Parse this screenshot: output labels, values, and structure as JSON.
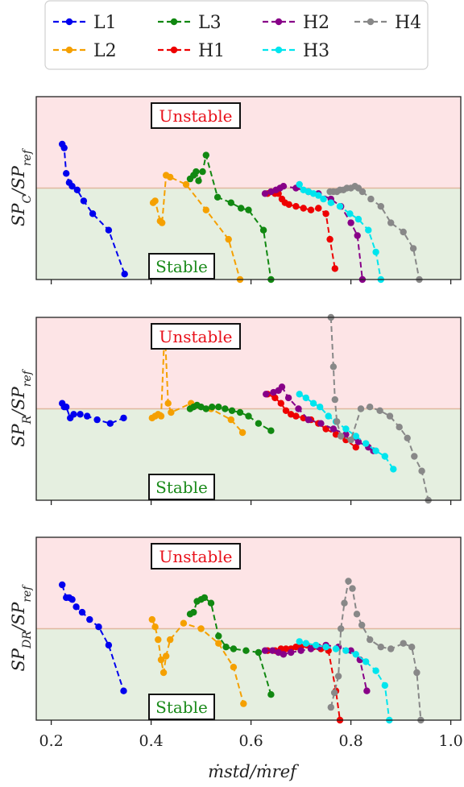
{
  "colors": {
    "unstable_bg": "#fde4e6",
    "stable_bg": "#e5efe0",
    "threshold_line": "#e0b8a0",
    "unstable_text": "#e8101a",
    "stable_text": "#1a8a1a"
  },
  "legend": {
    "entries": [
      "L1",
      "L2",
      "L3",
      "H1",
      "H2",
      "H3",
      "H4"
    ]
  },
  "x_tick_labels": [
    "0.2",
    "0.4",
    "0.6",
    "0.8",
    "1.0"
  ],
  "x_axis_label": "ṁstd/ṁref",
  "panels": [
    {
      "ylabel_main": "SP",
      "ylabel_sub": "C",
      "ylabel_ref": "SPref",
      "unstable_label": "Unstable",
      "stable_label": "Stable"
    },
    {
      "ylabel_main": "SP",
      "ylabel_sub": "R",
      "ylabel_ref": "SPref",
      "unstable_label": "Unstable",
      "stable_label": "Stable"
    },
    {
      "ylabel_main": "SP",
      "ylabel_sub": "DR",
      "ylabel_ref": "SPref",
      "unstable_label": "Unstable",
      "stable_label": "Stable"
    }
  ],
  "chart_data": [
    {
      "type": "line",
      "title": "",
      "xlabel": "ṁstd/ṁref",
      "ylabel": "SP_C/SP_ref",
      "xlim": [
        0.17,
        1.02
      ],
      "ylim": [
        0,
        1
      ],
      "threshold": 0.5,
      "series": [
        {
          "name": "L1",
          "color": "#0000ee",
          "x": [
            0.222,
            0.226,
            0.23,
            0.236,
            0.242,
            0.252,
            0.265,
            0.283,
            0.315,
            0.347
          ],
          "y": [
            0.74,
            0.72,
            0.58,
            0.53,
            0.51,
            0.49,
            0.43,
            0.36,
            0.27,
            0.03
          ]
        },
        {
          "name": "L2",
          "color": "#f5a000",
          "x": [
            0.404,
            0.408,
            0.418,
            0.422,
            0.43,
            0.438,
            0.47,
            0.51,
            0.555,
            0.578
          ],
          "y": [
            0.42,
            0.43,
            0.32,
            0.31,
            0.57,
            0.56,
            0.52,
            0.38,
            0.22,
            0.0
          ]
        },
        {
          "name": "L3",
          "color": "#118811",
          "x": [
            0.478,
            0.485,
            0.49,
            0.495,
            0.503,
            0.51,
            0.533,
            0.56,
            0.58,
            0.595,
            0.625,
            0.64
          ],
          "y": [
            0.55,
            0.57,
            0.59,
            0.54,
            0.59,
            0.68,
            0.45,
            0.42,
            0.39,
            0.38,
            0.27,
            0.0
          ]
        },
        {
          "name": "H1",
          "color": "#ee0000",
          "x": [
            0.633,
            0.648,
            0.655,
            0.662,
            0.668,
            0.676,
            0.69,
            0.705,
            0.72,
            0.735,
            0.75,
            0.758,
            0.768
          ],
          "y": [
            0.47,
            0.47,
            0.47,
            0.44,
            0.42,
            0.41,
            0.4,
            0.39,
            0.38,
            0.39,
            0.36,
            0.22,
            0.06
          ]
        },
        {
          "name": "H2",
          "color": "#880088",
          "x": [
            0.628,
            0.64,
            0.65,
            0.658,
            0.665,
            0.69,
            0.715,
            0.735,
            0.76,
            0.78,
            0.8,
            0.813,
            0.823
          ],
          "y": [
            0.47,
            0.48,
            0.49,
            0.5,
            0.51,
            0.5,
            0.48,
            0.47,
            0.44,
            0.4,
            0.31,
            0.24,
            0.0
          ]
        },
        {
          "name": "H3",
          "color": "#00e5ee",
          "x": [
            0.697,
            0.705,
            0.715,
            0.725,
            0.735,
            0.745,
            0.76,
            0.778,
            0.798,
            0.815,
            0.835,
            0.85,
            0.86
          ],
          "y": [
            0.52,
            0.49,
            0.48,
            0.47,
            0.46,
            0.44,
            0.42,
            0.4,
            0.36,
            0.33,
            0.27,
            0.15,
            0.0
          ]
        },
        {
          "name": "H4",
          "color": "#888888",
          "x": [
            0.758,
            0.765,
            0.772,
            0.778,
            0.785,
            0.792,
            0.8,
            0.808,
            0.815,
            0.823,
            0.84,
            0.86,
            0.88,
            0.905,
            0.925,
            0.937
          ],
          "y": [
            0.48,
            0.48,
            0.48,
            0.49,
            0.49,
            0.5,
            0.5,
            0.51,
            0.5,
            0.48,
            0.44,
            0.4,
            0.31,
            0.26,
            0.17,
            0.0
          ]
        }
      ]
    },
    {
      "type": "line",
      "title": "",
      "xlabel": "ṁstd/ṁref",
      "ylabel": "SP_R/SP_ref",
      "xlim": [
        0.17,
        1.02
      ],
      "ylim": [
        0,
        1
      ],
      "threshold": 0.5,
      "series": [
        {
          "name": "L1",
          "color": "#0000ee",
          "x": [
            0.222,
            0.226,
            0.23,
            0.238,
            0.245,
            0.258,
            0.272,
            0.292,
            0.318,
            0.345
          ],
          "y": [
            0.53,
            0.51,
            0.51,
            0.45,
            0.47,
            0.47,
            0.46,
            0.44,
            0.42,
            0.45
          ]
        },
        {
          "name": "L2",
          "color": "#f5a000",
          "x": [
            0.402,
            0.408,
            0.414,
            0.42,
            0.426,
            0.428,
            0.434,
            0.44,
            0.48,
            0.52,
            0.56,
            0.583
          ],
          "y": [
            0.45,
            0.46,
            0.47,
            0.46,
            0.86,
            0.89,
            0.53,
            0.48,
            0.53,
            0.5,
            0.44,
            0.37
          ]
        },
        {
          "name": "L3",
          "color": "#118811",
          "x": [
            0.478,
            0.485,
            0.492,
            0.5,
            0.51,
            0.522,
            0.535,
            0.548,
            0.562,
            0.578,
            0.595,
            0.615,
            0.64
          ],
          "y": [
            0.5,
            0.51,
            0.52,
            0.51,
            0.5,
            0.51,
            0.51,
            0.5,
            0.49,
            0.48,
            0.46,
            0.42,
            0.38
          ]
        },
        {
          "name": "H1",
          "color": "#ee0000",
          "x": [
            0.633,
            0.648,
            0.66,
            0.67,
            0.68,
            0.69,
            0.705,
            0.72,
            0.735,
            0.75,
            0.77,
            0.79,
            0.81
          ],
          "y": [
            0.58,
            0.56,
            0.53,
            0.49,
            0.47,
            0.46,
            0.45,
            0.44,
            0.42,
            0.39,
            0.36,
            0.33,
            0.29
          ]
        },
        {
          "name": "H2",
          "color": "#880088",
          "x": [
            0.63,
            0.645,
            0.655,
            0.662,
            0.675,
            0.695,
            0.715,
            0.74,
            0.765,
            0.79,
            0.815,
            0.835,
            0.845
          ],
          "y": [
            0.58,
            0.59,
            0.6,
            0.62,
            0.56,
            0.5,
            0.44,
            0.42,
            0.39,
            0.36,
            0.32,
            0.29,
            0.27
          ]
        },
        {
          "name": "H3",
          "color": "#00e5ee",
          "x": [
            0.697,
            0.71,
            0.725,
            0.738,
            0.755,
            0.77,
            0.79,
            0.81,
            0.83,
            0.85,
            0.868,
            0.885
          ],
          "y": [
            0.58,
            0.56,
            0.53,
            0.51,
            0.46,
            0.43,
            0.39,
            0.35,
            0.31,
            0.27,
            0.24,
            0.17
          ]
        },
        {
          "name": "H4",
          "color": "#888888",
          "x": [
            0.76,
            0.765,
            0.768,
            0.772,
            0.78,
            0.8,
            0.82,
            0.838,
            0.858,
            0.878,
            0.897,
            0.913,
            0.927,
            0.942,
            0.955
          ],
          "y": [
            1.0,
            0.73,
            0.55,
            0.43,
            0.35,
            0.33,
            0.5,
            0.51,
            0.49,
            0.46,
            0.4,
            0.34,
            0.24,
            0.16,
            0.0
          ]
        }
      ]
    },
    {
      "type": "line",
      "title": "",
      "xlabel": "ṁstd/ṁref",
      "ylabel": "SP_DR/SP_ref",
      "xlim": [
        0.17,
        1.02
      ],
      "ylim": [
        0,
        1
      ],
      "threshold": 0.5,
      "series": [
        {
          "name": "L1",
          "color": "#0000ee",
          "x": [
            0.222,
            0.23,
            0.236,
            0.242,
            0.25,
            0.262,
            0.277,
            0.295,
            0.315,
            0.345
          ],
          "y": [
            0.74,
            0.67,
            0.67,
            0.66,
            0.62,
            0.59,
            0.55,
            0.51,
            0.41,
            0.16
          ]
        },
        {
          "name": "L2",
          "color": "#f5a000",
          "x": [
            0.402,
            0.408,
            0.414,
            0.42,
            0.425,
            0.43,
            0.438,
            0.465,
            0.5,
            0.535,
            0.565,
            0.585
          ],
          "y": [
            0.55,
            0.51,
            0.44,
            0.33,
            0.26,
            0.35,
            0.44,
            0.53,
            0.5,
            0.42,
            0.29,
            0.09
          ]
        },
        {
          "name": "L3",
          "color": "#118811",
          "x": [
            0.478,
            0.485,
            0.492,
            0.5,
            0.507,
            0.52,
            0.535,
            0.55,
            0.565,
            0.59,
            0.615,
            0.64
          ],
          "y": [
            0.58,
            0.59,
            0.65,
            0.66,
            0.67,
            0.64,
            0.46,
            0.4,
            0.39,
            0.38,
            0.37,
            0.14
          ]
        },
        {
          "name": "H1",
          "color": "#ee0000",
          "x": [
            0.633,
            0.648,
            0.66,
            0.67,
            0.68,
            0.69,
            0.7,
            0.712,
            0.725,
            0.74,
            0.755,
            0.77,
            0.778
          ],
          "y": [
            0.38,
            0.38,
            0.39,
            0.39,
            0.39,
            0.4,
            0.4,
            0.41,
            0.4,
            0.39,
            0.38,
            0.16,
            0.0
          ]
        },
        {
          "name": "H2",
          "color": "#880088",
          "x": [
            0.628,
            0.643,
            0.655,
            0.665,
            0.68,
            0.7,
            0.72,
            0.735,
            0.75,
            0.775,
            0.8,
            0.818,
            0.832
          ],
          "y": [
            0.38,
            0.38,
            0.37,
            0.36,
            0.37,
            0.38,
            0.39,
            0.4,
            0.41,
            0.4,
            0.38,
            0.33,
            0.16
          ]
        },
        {
          "name": "H3",
          "color": "#00e5ee",
          "x": [
            0.697,
            0.71,
            0.73,
            0.75,
            0.77,
            0.79,
            0.81,
            0.83,
            0.85,
            0.868,
            0.877
          ],
          "y": [
            0.43,
            0.42,
            0.41,
            0.4,
            0.39,
            0.38,
            0.36,
            0.32,
            0.27,
            0.19,
            0.0
          ]
        },
        {
          "name": "H4",
          "color": "#888888",
          "x": [
            0.76,
            0.767,
            0.775,
            0.78,
            0.787,
            0.795,
            0.803,
            0.812,
            0.822,
            0.838,
            0.86,
            0.88,
            0.905,
            0.922,
            0.932,
            0.94
          ],
          "y": [
            0.07,
            0.15,
            0.24,
            0.5,
            0.64,
            0.76,
            0.72,
            0.58,
            0.52,
            0.44,
            0.4,
            0.39,
            0.42,
            0.4,
            0.26,
            0.0
          ]
        }
      ]
    }
  ]
}
